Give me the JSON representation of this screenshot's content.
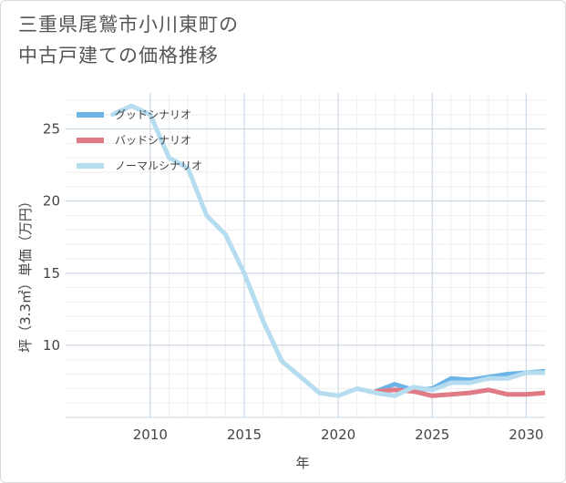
{
  "title": "三重県尾鷲市小川東町の\n中古戸建ての価格推移",
  "chart_data": {
    "type": "line",
    "xlabel": "年",
    "ylabel": "坪（3.3㎡）単価（万円）",
    "xlim": [
      2005.5,
      2031
    ],
    "ylim": [
      5,
      27.5
    ],
    "xticks": [
      2010,
      2015,
      2020,
      2025,
      2030
    ],
    "yticks": [
      10,
      15,
      20,
      25
    ],
    "grid": true,
    "legend_position": "top-left",
    "series": [
      {
        "name": "グッドシナリオ",
        "color": "#6cb4e6",
        "x": [
          2022,
          2023,
          2024,
          2025,
          2026,
          2027,
          2028,
          2029,
          2030,
          2031
        ],
        "y": [
          6.8,
          7.3,
          6.9,
          7.0,
          7.7,
          7.6,
          7.8,
          8.0,
          8.1,
          8.2
        ]
      },
      {
        "name": "バッドシナリオ",
        "color": "#e07b85",
        "x": [
          2022,
          2023,
          2024,
          2025,
          2026,
          2027,
          2028,
          2029,
          2030,
          2031
        ],
        "y": [
          6.8,
          6.9,
          6.8,
          6.5,
          6.6,
          6.7,
          6.9,
          6.6,
          6.6,
          6.7
        ]
      },
      {
        "name": "ノーマルシナリオ",
        "color": "#b5dcef",
        "x": [
          2008,
          2009,
          2010,
          2011,
          2012,
          2013,
          2014,
          2015,
          2016,
          2017,
          2018,
          2019,
          2020,
          2021,
          2022,
          2023,
          2024,
          2025,
          2026,
          2027,
          2028,
          2029,
          2030,
          2031
        ],
        "y": [
          26.0,
          26.6,
          26.0,
          23.0,
          22.3,
          19.0,
          17.7,
          15.0,
          11.7,
          8.9,
          7.8,
          6.7,
          6.5,
          7.0,
          6.7,
          6.5,
          7.1,
          6.9,
          7.4,
          7.4,
          7.7,
          7.7,
          8.1,
          8.1
        ]
      }
    ]
  }
}
